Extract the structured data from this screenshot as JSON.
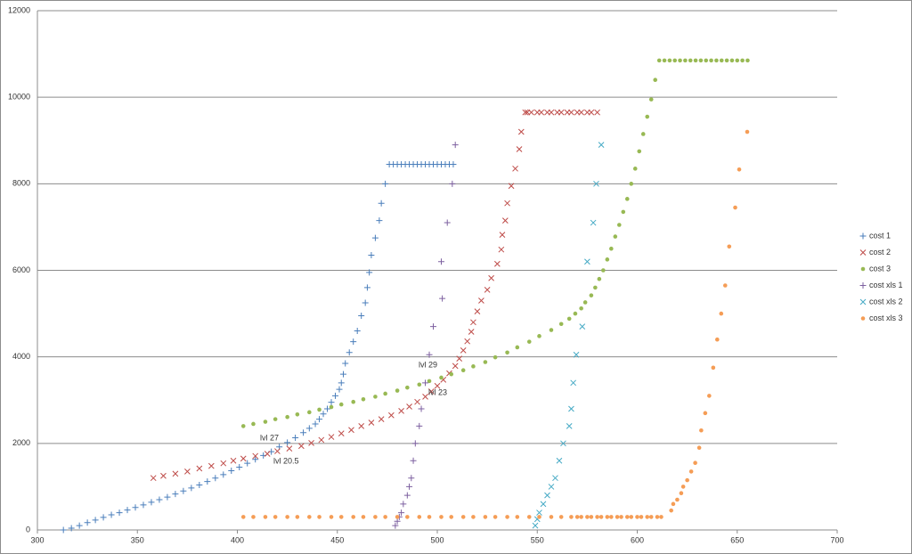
{
  "chart_data": {
    "type": "scatter",
    "xlim": [
      300,
      700
    ],
    "xticks": [
      300,
      350,
      400,
      450,
      500,
      550,
      600,
      650,
      700
    ],
    "ylim": [
      0,
      12000
    ],
    "yticks": [
      0,
      2000,
      4000,
      6000,
      8000,
      10000,
      12000
    ],
    "grid": true,
    "legend": "right",
    "annotations": [
      "lvl 29",
      "lvl 23",
      "lvl 27",
      "lvl 20.5"
    ],
    "series": [
      {
        "name": "cost 1",
        "color": "#4a7ebb",
        "marker": "plus",
        "x": [
          313,
          317,
          321,
          325,
          329,
          333,
          337,
          341,
          345,
          349,
          353,
          357,
          361,
          365,
          369,
          373,
          377,
          381,
          385,
          389,
          393,
          397,
          401,
          405,
          409,
          413,
          417,
          421,
          425,
          429,
          433,
          436,
          439,
          441,
          443,
          445,
          447,
          449,
          451,
          452,
          453,
          454,
          456,
          458,
          460,
          462,
          464,
          465,
          466,
          467,
          469,
          471,
          472,
          474,
          476,
          478,
          480,
          482,
          484,
          486,
          488,
          490,
          492,
          494,
          496,
          498,
          500,
          502,
          504,
          506,
          508
        ],
        "values": [
          0,
          40,
          100,
          170,
          230,
          290,
          350,
          400,
          460,
          520,
          580,
          640,
          700,
          760,
          830,
          900,
          970,
          1040,
          1120,
          1200,
          1280,
          1370,
          1450,
          1540,
          1630,
          1720,
          1810,
          1920,
          2020,
          2130,
          2250,
          2350,
          2450,
          2560,
          2680,
          2800,
          2950,
          3100,
          3250,
          3400,
          3600,
          3850,
          4100,
          4350,
          4600,
          4950,
          5250,
          5600,
          5950,
          6350,
          6750,
          7150,
          7550,
          8000,
          8450,
          8450,
          8450,
          8450,
          8450,
          8450,
          8450,
          8450,
          8450,
          8450,
          8450,
          8450,
          8450,
          8450,
          8450,
          8450,
          8450
        ]
      },
      {
        "name": "cost 2",
        "color": "#be4b48",
        "marker": "cross",
        "x": [
          358,
          363,
          369,
          375,
          381,
          387,
          393,
          398,
          403,
          409,
          415,
          420,
          426,
          432,
          437,
          442,
          447,
          452,
          457,
          462,
          467,
          472,
          477,
          482,
          486,
          490,
          494,
          497,
          500,
          503,
          506,
          509,
          511,
          513,
          515,
          517,
          518,
          520,
          522,
          525,
          527,
          530,
          532,
          532.5,
          534,
          535,
          537,
          539,
          541,
          542,
          544,
          545,
          547,
          550,
          552,
          555,
          557,
          560,
          562,
          565,
          567,
          570,
          572,
          575,
          577,
          580
        ],
        "values": [
          1200,
          1250,
          1300,
          1350,
          1420,
          1480,
          1540,
          1600,
          1650,
          1710,
          1760,
          1820,
          1880,
          1940,
          2010,
          2080,
          2150,
          2230,
          2310,
          2400,
          2480,
          2560,
          2650,
          2750,
          2850,
          2960,
          3080,
          3200,
          3330,
          3470,
          3620,
          3790,
          3960,
          4150,
          4360,
          4580,
          4800,
          5050,
          5300,
          5550,
          5820,
          6150,
          6480,
          6820,
          7150,
          7550,
          7950,
          8350,
          8800,
          9200,
          9650,
          9650,
          9650,
          9650,
          9650,
          9650,
          9650,
          9650,
          9650,
          9650,
          9650,
          9650,
          9650,
          9650,
          9650,
          9650
        ]
      },
      {
        "name": "cost 3",
        "color": "#98b954",
        "marker": "circle",
        "x": [
          403,
          408,
          414,
          419,
          425,
          430,
          436,
          441,
          447,
          452,
          458,
          463,
          469,
          474,
          480,
          485,
          491,
          496,
          502,
          507,
          513,
          518,
          524,
          529,
          535,
          540,
          546,
          551,
          557,
          562,
          566,
          569,
          572,
          574,
          577,
          579,
          581,
          583,
          585,
          587,
          589,
          591,
          593,
          595,
          597,
          599,
          601,
          603,
          605,
          607,
          609,
          611,
          613.6,
          616.2,
          618.8,
          621.4,
          624,
          626.6,
          629.2,
          631.8,
          634.4,
          637,
          639.6,
          642.2,
          644.8,
          647.4,
          650,
          652.6,
          655.2
        ],
        "values": [
          2400,
          2450,
          2500,
          2560,
          2610,
          2670,
          2720,
          2780,
          2840,
          2900,
          2960,
          3020,
          3080,
          3150,
          3220,
          3290,
          3360,
          3440,
          3520,
          3600,
          3690,
          3780,
          3880,
          3990,
          4100,
          4220,
          4350,
          4480,
          4620,
          4760,
          4880,
          5000,
          5120,
          5260,
          5420,
          5600,
          5800,
          6000,
          6250,
          6500,
          6780,
          7050,
          7350,
          7650,
          8000,
          8350,
          8750,
          9150,
          9550,
          9950,
          10400,
          10850,
          10850,
          10850,
          10850,
          10850,
          10850,
          10850,
          10850,
          10850,
          10850,
          10850,
          10850,
          10850,
          10850,
          10850,
          10850,
          10850,
          10850
        ]
      },
      {
        "name": "cost xls 1",
        "color": "#7d60a0",
        "marker": "plus",
        "x": [
          479,
          480,
          481,
          482,
          483,
          485,
          486,
          487,
          488,
          489,
          491,
          492,
          494,
          496,
          498,
          502,
          502.5,
          505,
          507.5,
          509
        ],
        "values": [
          100,
          200,
          300,
          400,
          600,
          800,
          1000,
          1200,
          1600,
          2000,
          2400,
          2800,
          3400,
          4050,
          4700,
          6200,
          5350,
          7100,
          8000,
          8900
        ]
      },
      {
        "name": "cost xls 2",
        "color": "#46aac5",
        "marker": "cross",
        "x": [
          549,
          550,
          551,
          553,
          555,
          557,
          559,
          561,
          563,
          566,
          567,
          568,
          569.5,
          572.5,
          575,
          578,
          579.5,
          582
        ],
        "values": [
          100,
          250,
          400,
          600,
          800,
          1000,
          1200,
          1600,
          2000,
          2400,
          2800,
          3400,
          4050,
          4700,
          6200,
          7100,
          8000,
          8900
        ]
      },
      {
        "name": "cost xls 3",
        "color": "#f59d56",
        "marker": "circle",
        "x": [
          403,
          408,
          414,
          419,
          425,
          430,
          436,
          441,
          447,
          452,
          458,
          463,
          469,
          474,
          480,
          485,
          491,
          496,
          502,
          507,
          513,
          518,
          524,
          529,
          535,
          540,
          546,
          551,
          557,
          562,
          567,
          570,
          572,
          575,
          577,
          580,
          582,
          585,
          587,
          590,
          592,
          595,
          597,
          600,
          602,
          605,
          607,
          610,
          612,
          617,
          618,
          620,
          622,
          623,
          625,
          627,
          629,
          631,
          632,
          634,
          636,
          638,
          640,
          642,
          644,
          646,
          649,
          651,
          655
        ],
        "values": [
          300,
          300,
          300,
          300,
          300,
          300,
          300,
          300,
          300,
          300,
          300,
          300,
          300,
          300,
          300,
          300,
          300,
          300,
          300,
          300,
          300,
          300,
          300,
          300,
          300,
          300,
          300,
          300,
          300,
          300,
          300,
          300,
          300,
          300,
          300,
          300,
          300,
          300,
          300,
          300,
          300,
          300,
          300,
          300,
          300,
          300,
          300,
          300,
          300,
          450,
          600,
          700,
          850,
          1000,
          1150,
          1350,
          1550,
          1900,
          2300,
          2700,
          3100,
          3750,
          4400,
          5000,
          5650,
          6550,
          7450,
          8330,
          9200
        ]
      }
    ]
  }
}
